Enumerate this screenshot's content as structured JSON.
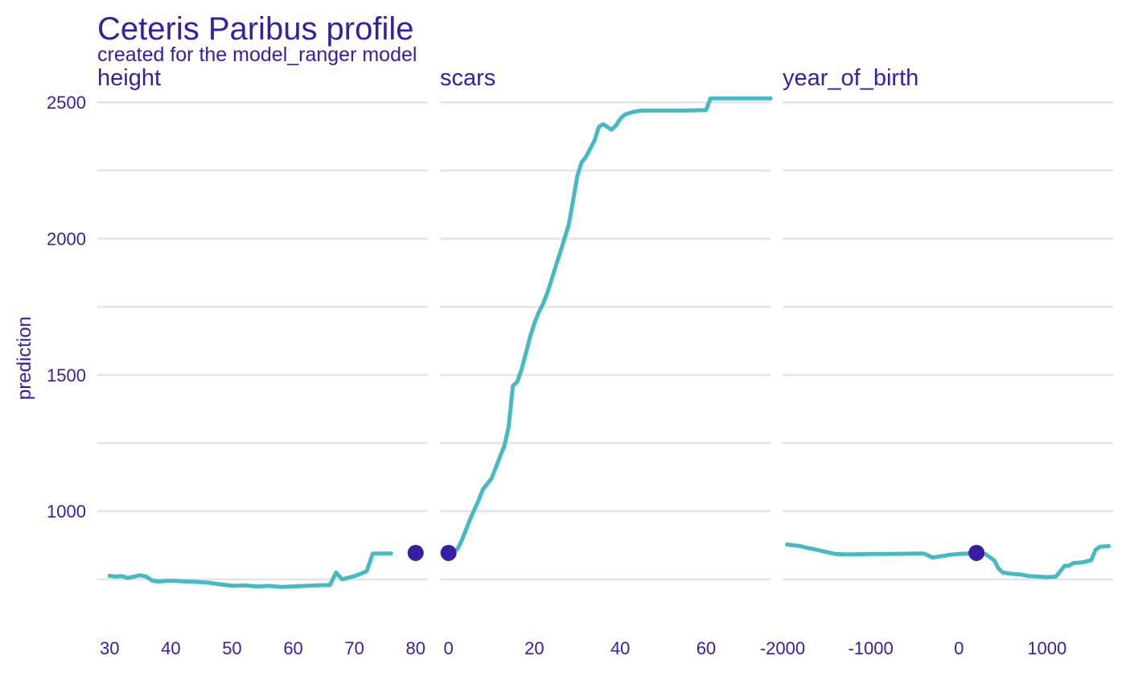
{
  "chart_data": {
    "type": "line",
    "title": "Ceteris Paribus profile",
    "subtitle": "created for the model_ranger model",
    "ylabel": "prediction",
    "ylim": [
      590,
      2545
    ],
    "y_ticks": [
      1000,
      1500,
      2000,
      2500
    ],
    "y_tick_labels": [
      "1000",
      "1500",
      "2000",
      "2500"
    ],
    "y_minor_ticks": [
      750,
      1250,
      1750,
      2250
    ],
    "line_color": "#46bac2",
    "point_color": "#371ea3",
    "panels": [
      {
        "name": "height",
        "xlim": [
          28,
          82
        ],
        "x_ticks": [
          30,
          40,
          50,
          60,
          70,
          80
        ],
        "x_tick_labels": [
          "30",
          "40",
          "50",
          "60",
          "70",
          "80"
        ],
        "observation": {
          "x": 80,
          "y": 847
        },
        "profile": {
          "x": [
            30,
            31,
            32,
            33,
            34,
            35,
            36,
            37,
            38,
            39,
            40,
            42,
            44,
            46,
            48,
            50,
            52,
            54,
            56,
            58,
            60,
            62,
            64,
            66,
            67,
            68,
            70,
            71,
            72,
            73,
            74,
            76
          ],
          "y": [
            763,
            760,
            762,
            755,
            760,
            765,
            760,
            745,
            742,
            744,
            745,
            743,
            741,
            738,
            732,
            726,
            728,
            724,
            726,
            722,
            724,
            726,
            728,
            729,
            775,
            750,
            762,
            770,
            780,
            845,
            845,
            845
          ]
        }
      },
      {
        "name": "scars",
        "xlim": [
          -2,
          75
        ],
        "x_ticks": [
          0,
          20,
          40,
          60
        ],
        "x_tick_labels": [
          "0",
          "20",
          "40",
          "60"
        ],
        "observation": {
          "x": 0,
          "y": 847
        },
        "profile": {
          "x": [
            0,
            2,
            3,
            5,
            7,
            8,
            10,
            11,
            12,
            13,
            14,
            15,
            16,
            17,
            18,
            19,
            20,
            21,
            22,
            23,
            24,
            25,
            26,
            27,
            28,
            29,
            30,
            31,
            32,
            33,
            34,
            35,
            36,
            37,
            38,
            39,
            40,
            41,
            42,
            43,
            44,
            45,
            46,
            48,
            50,
            55,
            60,
            61,
            65,
            70,
            75
          ],
          "y": [
            847,
            860,
            890,
            970,
            1040,
            1080,
            1120,
            1160,
            1200,
            1240,
            1310,
            1460,
            1475,
            1520,
            1580,
            1640,
            1690,
            1730,
            1760,
            1800,
            1850,
            1900,
            1950,
            2000,
            2050,
            2140,
            2230,
            2280,
            2300,
            2330,
            2360,
            2410,
            2420,
            2410,
            2400,
            2415,
            2440,
            2455,
            2460,
            2465,
            2468,
            2470,
            2470,
            2470,
            2470,
            2470,
            2472,
            2515,
            2515,
            2515,
            2515
          ]
        }
      },
      {
        "name": "year_of_birth",
        "xlim": [
          -2000,
          1750
        ],
        "x_ticks": [
          -2000,
          -1000,
          0,
          1000
        ],
        "x_tick_labels": [
          "-2000",
          "-1000",
          "0",
          "1000"
        ],
        "observation": {
          "x": 200,
          "y": 847
        },
        "profile": {
          "x": [
            -1950,
            -1800,
            -1700,
            -1600,
            -1500,
            -1400,
            -1300,
            -1200,
            -1000,
            -800,
            -600,
            -400,
            -350,
            -300,
            -200,
            -100,
            0,
            100,
            200,
            250,
            300,
            400,
            450,
            500,
            600,
            700,
            800,
            900,
            1000,
            1100,
            1200,
            1250,
            1300,
            1400,
            1500,
            1550,
            1600,
            1700
          ],
          "y": [
            878,
            872,
            864,
            858,
            850,
            843,
            842,
            842,
            843,
            843,
            844,
            845,
            838,
            830,
            835,
            840,
            843,
            845,
            847,
            845,
            843,
            820,
            790,
            775,
            770,
            768,
            762,
            760,
            758,
            760,
            800,
            800,
            810,
            812,
            820,
            858,
            870,
            872
          ]
        }
      }
    ]
  }
}
